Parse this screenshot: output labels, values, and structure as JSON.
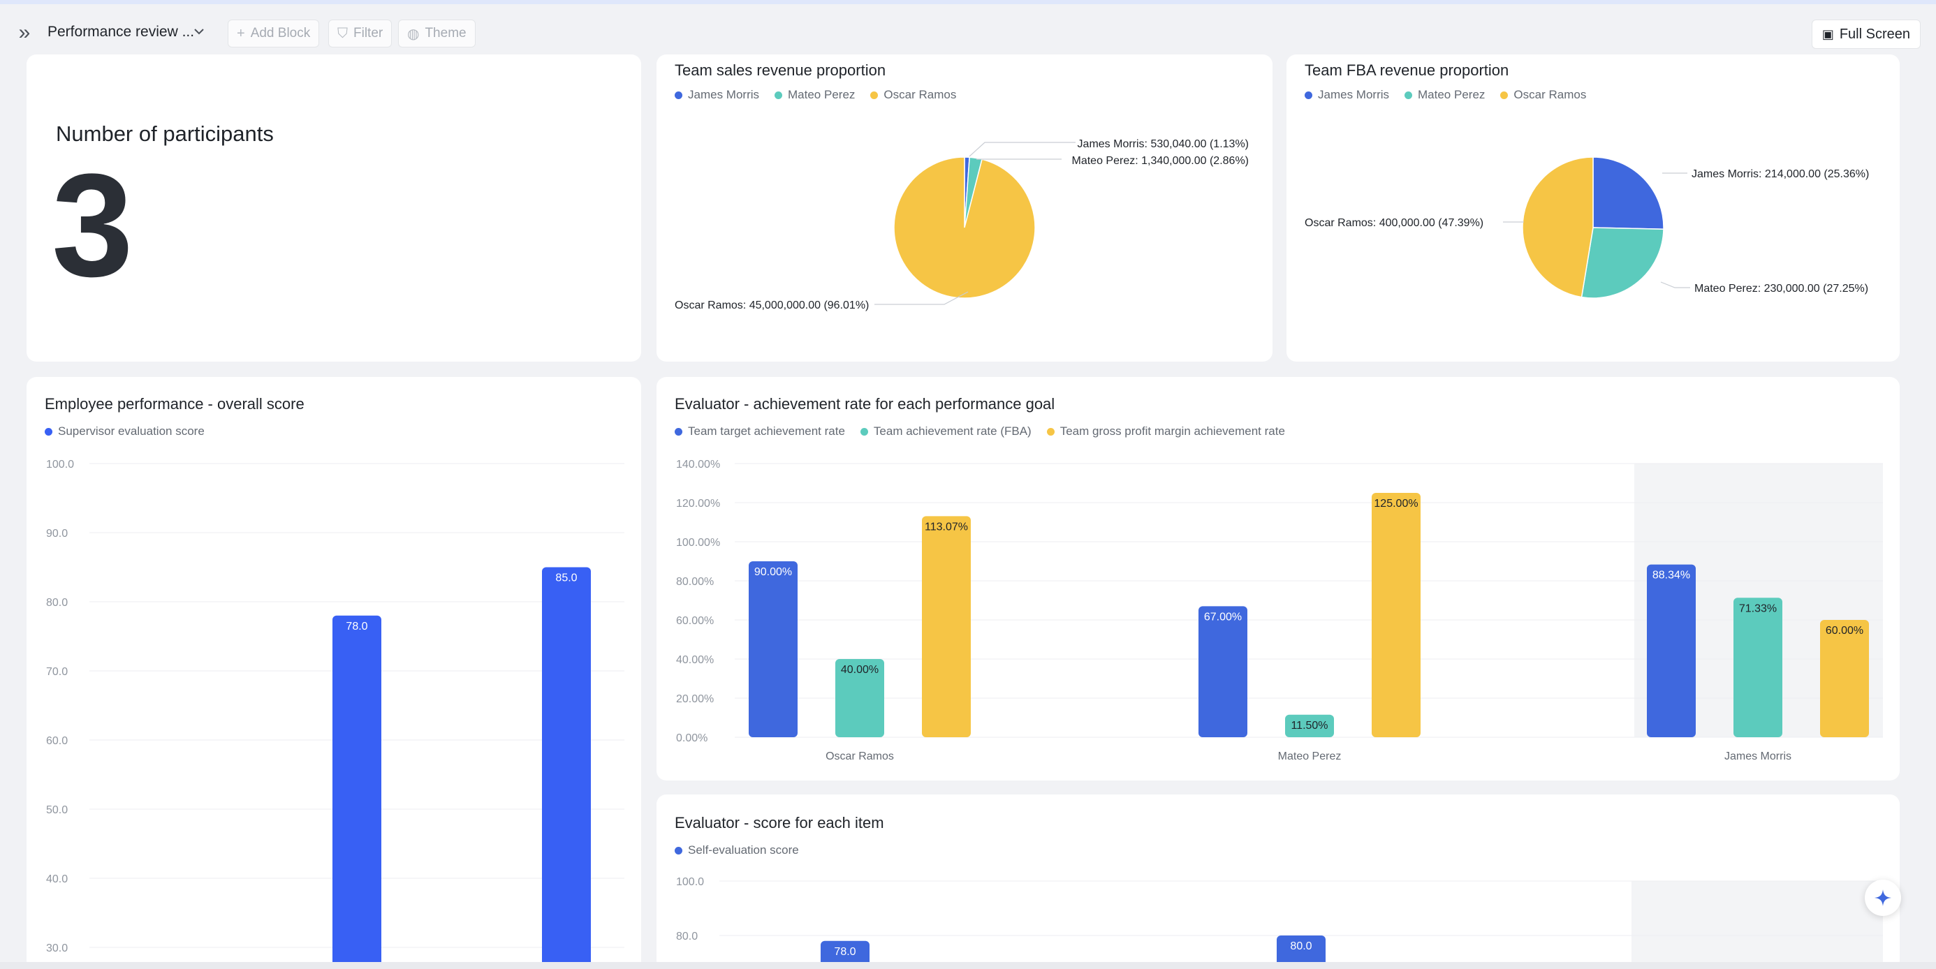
{
  "toolbar": {
    "title": "Performance review ...",
    "add_block": "Add Block",
    "filter": "Filter",
    "theme": "Theme",
    "full_screen": "Full Screen"
  },
  "stat": {
    "label": "Number of participants",
    "value": "3"
  },
  "colors": {
    "blue": "#3f68de",
    "teal": "#5ccbbd",
    "yellow": "#f6c545",
    "bar_blue": "#3860f4"
  },
  "sales_pie": {
    "title": "Team sales revenue proportion",
    "chart_data": {
      "type": "pie",
      "title": "Team sales revenue proportion",
      "legend": [
        "James Morris",
        "Mateo Perez",
        "Oscar Ramos"
      ],
      "slices": [
        {
          "name": "James Morris",
          "value": 530040,
          "label": "James Morris: 530,040.00 (1.13%)"
        },
        {
          "name": "Mateo Perez",
          "value": 1340000,
          "label": "Mateo Perez: 1,340,000.00 (2.86%)"
        },
        {
          "name": "Oscar Ramos",
          "value": 45000000,
          "label": "Oscar Ramos: 45,000,000.00 (96.01%)"
        }
      ]
    }
  },
  "fba_pie": {
    "title": "Team FBA revenue proportion",
    "chart_data": {
      "type": "pie",
      "title": "Team FBA revenue proportion",
      "legend": [
        "James Morris",
        "Mateo Perez",
        "Oscar Ramos"
      ],
      "slices": [
        {
          "name": "James Morris",
          "value": 214000,
          "label": "James Morris: 214,000.00 (25.36%)"
        },
        {
          "name": "Mateo Perez",
          "value": 230000,
          "label": "Mateo Perez: 230,000.00 (27.25%)"
        },
        {
          "name": "Oscar Ramos",
          "value": 400000,
          "label": "Oscar Ramos: 400,000.00 (47.39%)"
        }
      ]
    }
  },
  "overall": {
    "title": "Employee performance - overall score",
    "chart_data": {
      "type": "bar",
      "title": "Employee performance - overall score",
      "series": [
        {
          "name": "Supervisor evaluation score",
          "values": [
            78.0,
            85.0
          ]
        }
      ],
      "y_ticks": [
        "100.0",
        "90.0",
        "80.0",
        "70.0",
        "60.0",
        "50.0",
        "40.0",
        "30.0"
      ],
      "ylim": [
        30,
        100
      ],
      "value_labels": [
        "78.0",
        "85.0"
      ]
    }
  },
  "achievement": {
    "title": "Evaluator - achievement rate for each performance goal",
    "chart_data": {
      "type": "bar",
      "title": "Evaluator - achievement rate for each performance goal",
      "categories": [
        "Oscar Ramos",
        "Mateo Perez",
        "James Morris"
      ],
      "series": [
        {
          "name": "Team target achievement rate",
          "values": [
            90.0,
            67.0,
            88.34
          ],
          "labels": [
            "90.00%",
            "67.00%",
            "88.34%"
          ]
        },
        {
          "name": "Team achievement rate (FBA)",
          "values": [
            40.0,
            11.5,
            71.33
          ],
          "labels": [
            "40.00%",
            "11.50%",
            "71.33%"
          ]
        },
        {
          "name": "Team gross profit margin achievement rate",
          "values": [
            113.07,
            125.0,
            60.0
          ],
          "labels": [
            "113.07%",
            "125.00%",
            "60.00%"
          ]
        }
      ],
      "y_ticks": [
        "140.00%",
        "120.00%",
        "100.00%",
        "80.00%",
        "60.00%",
        "40.00%",
        "20.00%",
        "0.00%"
      ],
      "ylim": [
        0,
        140
      ]
    }
  },
  "item_score": {
    "title": "Evaluator - score for each item",
    "chart_data": {
      "type": "bar",
      "title": "Evaluator - score for each item",
      "series": [
        {
          "name": "Self-evaluation score",
          "values": [
            78.0,
            80.0
          ],
          "labels": [
            "78.0",
            "80.0"
          ]
        }
      ],
      "y_ticks": [
        "100.0",
        "80.0"
      ],
      "ylim": [
        0,
        100
      ]
    }
  }
}
